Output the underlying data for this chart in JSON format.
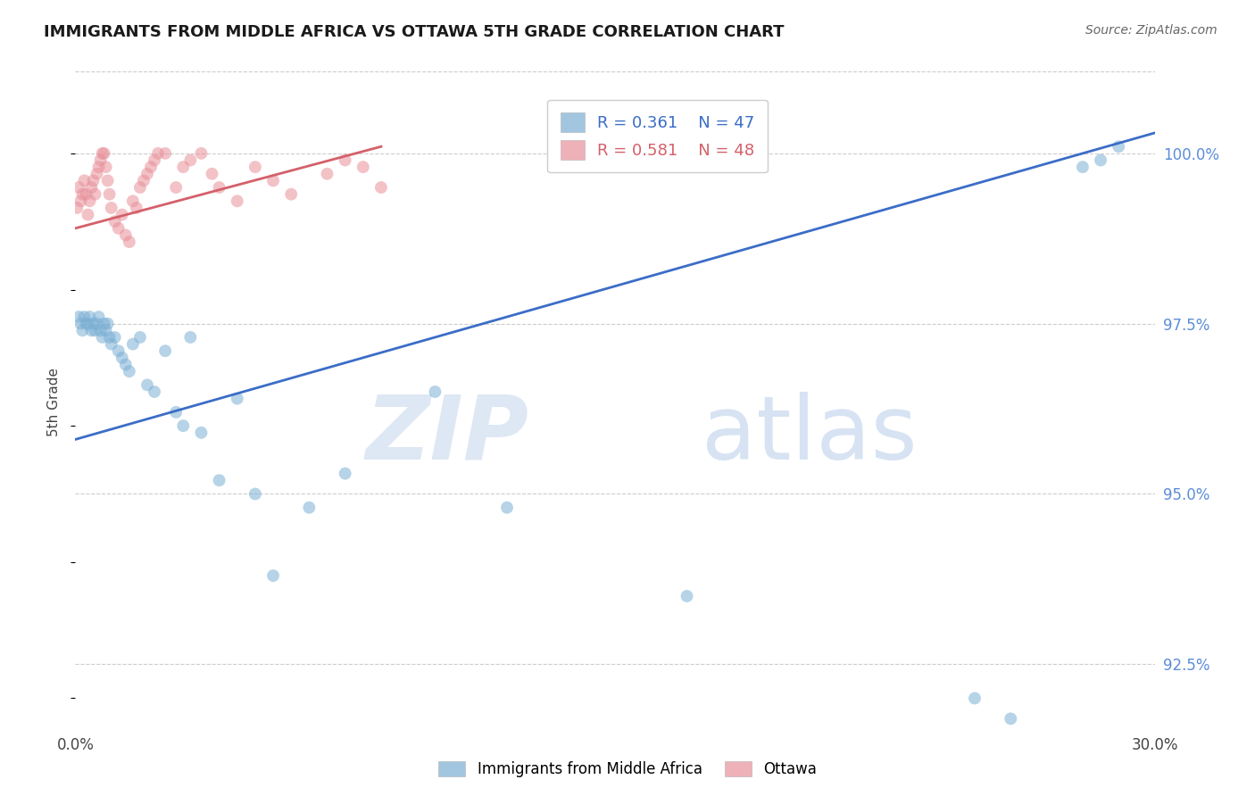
{
  "title": "IMMIGRANTS FROM MIDDLE AFRICA VS OTTAWA 5TH GRADE CORRELATION CHART",
  "source": "Source: ZipAtlas.com",
  "ylabel": "5th Grade",
  "ylabel_right_values": [
    100.0,
    97.5,
    95.0,
    92.5
  ],
  "xlim": [
    0.0,
    30.0
  ],
  "ylim": [
    91.5,
    101.2
  ],
  "legend_blue_r": "0.361",
  "legend_blue_n": "47",
  "legend_pink_r": "0.581",
  "legend_pink_n": "48",
  "legend_label_blue": "Immigrants from Middle Africa",
  "legend_label_pink": "Ottawa",
  "watermark_zip": "ZIP",
  "watermark_atlas": "atlas",
  "blue_color": "#7BAFD4",
  "pink_color": "#E8909A",
  "blue_line_color": "#3B6DC7",
  "pink_line_color": "#D4606A",
  "blue_scatter_x": [
    0.1,
    0.15,
    0.2,
    0.25,
    0.3,
    0.35,
    0.4,
    0.45,
    0.5,
    0.55,
    0.6,
    0.65,
    0.7,
    0.75,
    0.8,
    0.85,
    0.9,
    0.95,
    1.0,
    1.1,
    1.2,
    1.3,
    1.4,
    1.5,
    1.6,
    1.8,
    2.0,
    2.2,
    2.5,
    2.8,
    3.0,
    3.2,
    3.5,
    4.0,
    4.5,
    5.0,
    5.5,
    6.5,
    7.5,
    10.0,
    12.0,
    17.0,
    25.0,
    26.0,
    28.0,
    28.5,
    29.0
  ],
  "blue_scatter_y": [
    97.6,
    97.5,
    97.4,
    97.6,
    97.5,
    97.5,
    97.6,
    97.4,
    97.5,
    97.4,
    97.5,
    97.6,
    97.4,
    97.3,
    97.5,
    97.4,
    97.5,
    97.3,
    97.2,
    97.3,
    97.1,
    97.0,
    96.9,
    96.8,
    97.2,
    97.3,
    96.6,
    96.5,
    97.1,
    96.2,
    96.0,
    97.3,
    95.9,
    95.2,
    96.4,
    95.0,
    93.8,
    94.8,
    95.3,
    96.5,
    94.8,
    93.5,
    92.0,
    91.7,
    99.8,
    99.9,
    100.1
  ],
  "pink_scatter_x": [
    0.05,
    0.1,
    0.15,
    0.2,
    0.25,
    0.3,
    0.35,
    0.4,
    0.45,
    0.5,
    0.55,
    0.6,
    0.65,
    0.7,
    0.75,
    0.8,
    0.85,
    0.9,
    0.95,
    1.0,
    1.1,
    1.2,
    1.3,
    1.4,
    1.5,
    1.6,
    1.7,
    1.8,
    1.9,
    2.0,
    2.1,
    2.2,
    2.3,
    2.5,
    2.8,
    3.0,
    3.2,
    3.5,
    3.8,
    4.0,
    4.5,
    5.0,
    5.5,
    6.0,
    7.0,
    7.5,
    8.0,
    8.5
  ],
  "pink_scatter_y": [
    99.2,
    99.5,
    99.3,
    99.4,
    99.6,
    99.4,
    99.1,
    99.3,
    99.5,
    99.6,
    99.4,
    99.7,
    99.8,
    99.9,
    100.0,
    100.0,
    99.8,
    99.6,
    99.4,
    99.2,
    99.0,
    98.9,
    99.1,
    98.8,
    98.7,
    99.3,
    99.2,
    99.5,
    99.6,
    99.7,
    99.8,
    99.9,
    100.0,
    100.0,
    99.5,
    99.8,
    99.9,
    100.0,
    99.7,
    99.5,
    99.3,
    99.8,
    99.6,
    99.4,
    99.7,
    99.9,
    99.8,
    99.5
  ],
  "blue_trend": [
    0.0,
    30.0,
    95.8,
    100.3
  ],
  "pink_trend": [
    0.0,
    8.5,
    98.9,
    100.1
  ],
  "dot_size": 100
}
